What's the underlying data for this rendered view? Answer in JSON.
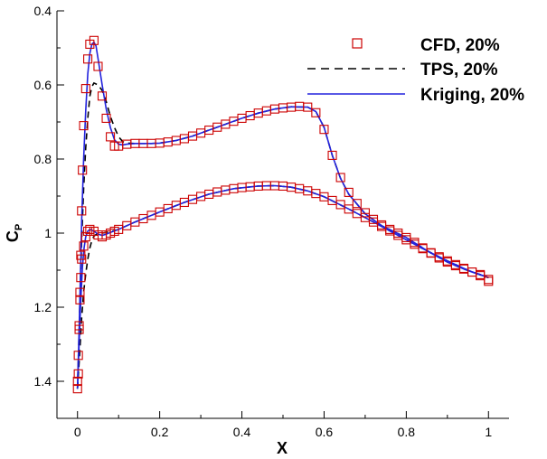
{
  "chart_data": {
    "type": "line",
    "xlabel": "X",
    "ylabel": "C",
    "ylabel_sub": "P",
    "xlim": [
      -0.05,
      1.05
    ],
    "ylim": [
      0.4,
      1.5
    ],
    "y_inverted": true,
    "xticks": [
      "0",
      "0.2",
      "0.4",
      "0.6",
      "0.8",
      "1"
    ],
    "xtick_values": [
      0,
      0.2,
      0.4,
      0.6,
      0.8,
      1
    ],
    "yticks": [
      "0.4",
      "0.6",
      "0.8",
      "1",
      "1.2",
      "1.4"
    ],
    "ytick_values": [
      0.4,
      0.6,
      0.8,
      1.0,
      1.2,
      1.4
    ],
    "grid": false,
    "legend_position": "top-right",
    "colors": {
      "cfd": "#cc0000",
      "tps": "#000000",
      "kriging": "#2222dd"
    },
    "series": [
      {
        "name": "CFD, 20%",
        "style": "markers",
        "marker": "square",
        "upper": [
          [
            0.0,
            1.42
          ],
          [
            0.002,
            1.38
          ],
          [
            0.004,
            1.26
          ],
          [
            0.006,
            1.16
          ],
          [
            0.008,
            1.06
          ],
          [
            0.01,
            0.94
          ],
          [
            0.012,
            0.83
          ],
          [
            0.015,
            0.71
          ],
          [
            0.02,
            0.61
          ],
          [
            0.025,
            0.53
          ],
          [
            0.03,
            0.49
          ],
          [
            0.04,
            0.48
          ],
          [
            0.05,
            0.55
          ],
          [
            0.06,
            0.63
          ],
          [
            0.07,
            0.69
          ],
          [
            0.08,
            0.74
          ],
          [
            0.09,
            0.765
          ],
          [
            0.1,
            0.765
          ],
          [
            0.12,
            0.76
          ],
          [
            0.14,
            0.758
          ],
          [
            0.16,
            0.758
          ],
          [
            0.18,
            0.758
          ],
          [
            0.2,
            0.757
          ],
          [
            0.22,
            0.754
          ],
          [
            0.24,
            0.75
          ],
          [
            0.26,
            0.745
          ],
          [
            0.28,
            0.738
          ],
          [
            0.3,
            0.73
          ],
          [
            0.32,
            0.722
          ],
          [
            0.34,
            0.714
          ],
          [
            0.36,
            0.706
          ],
          [
            0.38,
            0.698
          ],
          [
            0.4,
            0.69
          ],
          [
            0.42,
            0.683
          ],
          [
            0.44,
            0.676
          ],
          [
            0.46,
            0.67
          ],
          [
            0.48,
            0.665
          ],
          [
            0.5,
            0.662
          ],
          [
            0.52,
            0.66
          ],
          [
            0.54,
            0.658
          ],
          [
            0.56,
            0.66
          ],
          [
            0.58,
            0.675
          ],
          [
            0.6,
            0.72
          ],
          [
            0.62,
            0.79
          ],
          [
            0.64,
            0.85
          ],
          [
            0.66,
            0.89
          ],
          [
            0.68,
            0.92
          ],
          [
            0.7,
            0.945
          ],
          [
            0.72,
            0.963
          ],
          [
            0.74,
            0.978
          ],
          [
            0.76,
            0.99
          ],
          [
            0.78,
            1.0
          ],
          [
            0.8,
            1.012
          ],
          [
            0.82,
            1.025
          ],
          [
            0.84,
            1.04
          ],
          [
            0.86,
            1.054
          ],
          [
            0.88,
            1.067
          ],
          [
            0.9,
            1.078
          ],
          [
            0.92,
            1.088
          ],
          [
            0.94,
            1.097
          ],
          [
            0.96,
            1.105
          ],
          [
            0.98,
            1.112
          ],
          [
            1.0,
            1.13
          ]
        ],
        "lower": [
          [
            0.0,
            1.4
          ],
          [
            0.002,
            1.33
          ],
          [
            0.004,
            1.25
          ],
          [
            0.006,
            1.18
          ],
          [
            0.008,
            1.12
          ],
          [
            0.01,
            1.07
          ],
          [
            0.015,
            1.035
          ],
          [
            0.02,
            1.01
          ],
          [
            0.025,
            0.995
          ],
          [
            0.03,
            0.99
          ],
          [
            0.04,
            0.995
          ],
          [
            0.05,
            1.005
          ],
          [
            0.06,
            1.01
          ],
          [
            0.07,
            1.005
          ],
          [
            0.08,
            1.0
          ],
          [
            0.09,
            0.995
          ],
          [
            0.1,
            0.99
          ],
          [
            0.12,
            0.98
          ],
          [
            0.14,
            0.97
          ],
          [
            0.16,
            0.961
          ],
          [
            0.18,
            0.952
          ],
          [
            0.2,
            0.943
          ],
          [
            0.22,
            0.934
          ],
          [
            0.24,
            0.925
          ],
          [
            0.26,
            0.917
          ],
          [
            0.28,
            0.909
          ],
          [
            0.3,
            0.901
          ],
          [
            0.32,
            0.895
          ],
          [
            0.34,
            0.889
          ],
          [
            0.36,
            0.884
          ],
          [
            0.38,
            0.88
          ],
          [
            0.4,
            0.877
          ],
          [
            0.42,
            0.875
          ],
          [
            0.44,
            0.873
          ],
          [
            0.46,
            0.872
          ],
          [
            0.48,
            0.872
          ],
          [
            0.5,
            0.873
          ],
          [
            0.52,
            0.876
          ],
          [
            0.54,
            0.88
          ],
          [
            0.56,
            0.886
          ],
          [
            0.58,
            0.893
          ],
          [
            0.6,
            0.902
          ],
          [
            0.62,
            0.912
          ],
          [
            0.64,
            0.923
          ],
          [
            0.66,
            0.935
          ],
          [
            0.68,
            0.947
          ],
          [
            0.7,
            0.958
          ],
          [
            0.72,
            0.97
          ],
          [
            0.74,
            0.982
          ],
          [
            0.76,
            0.994
          ],
          [
            0.78,
            1.006
          ],
          [
            0.8,
            1.018
          ],
          [
            0.82,
            1.03
          ],
          [
            0.84,
            1.042
          ],
          [
            0.86,
            1.053
          ],
          [
            0.88,
            1.064
          ],
          [
            0.9,
            1.075
          ],
          [
            0.92,
            1.085
          ],
          [
            0.94,
            1.095
          ],
          [
            0.96,
            1.105
          ],
          [
            0.98,
            1.115
          ],
          [
            1.0,
            1.125
          ]
        ]
      },
      {
        "name": "TPS, 20%",
        "style": "dashed",
        "upper": [
          [
            0.0,
            1.42
          ],
          [
            0.005,
            1.22
          ],
          [
            0.01,
            1.02
          ],
          [
            0.015,
            0.88
          ],
          [
            0.02,
            0.77
          ],
          [
            0.025,
            0.69
          ],
          [
            0.03,
            0.63
          ],
          [
            0.035,
            0.605
          ],
          [
            0.04,
            0.595
          ],
          [
            0.05,
            0.6
          ],
          [
            0.06,
            0.615
          ],
          [
            0.07,
            0.645
          ],
          [
            0.08,
            0.685
          ],
          [
            0.09,
            0.715
          ],
          [
            0.1,
            0.74
          ],
          [
            0.11,
            0.753
          ],
          [
            0.12,
            0.757
          ],
          [
            0.14,
            0.758
          ],
          [
            0.16,
            0.758
          ],
          [
            0.18,
            0.758
          ],
          [
            0.2,
            0.757
          ],
          [
            0.24,
            0.75
          ],
          [
            0.28,
            0.738
          ],
          [
            0.32,
            0.722
          ],
          [
            0.36,
            0.706
          ],
          [
            0.4,
            0.69
          ],
          [
            0.44,
            0.676
          ],
          [
            0.48,
            0.665
          ],
          [
            0.52,
            0.659
          ],
          [
            0.56,
            0.66
          ],
          [
            0.58,
            0.672
          ],
          [
            0.6,
            0.715
          ],
          [
            0.62,
            0.79
          ],
          [
            0.64,
            0.852
          ],
          [
            0.66,
            0.895
          ],
          [
            0.7,
            0.948
          ],
          [
            0.74,
            0.98
          ],
          [
            0.8,
            1.012
          ],
          [
            0.86,
            1.054
          ],
          [
            0.9,
            1.078
          ],
          [
            0.94,
            1.097
          ],
          [
            0.98,
            1.112
          ],
          [
            1.0,
            1.12
          ]
        ],
        "lower": [
          [
            0.0,
            1.42
          ],
          [
            0.005,
            1.33
          ],
          [
            0.01,
            1.23
          ],
          [
            0.015,
            1.16
          ],
          [
            0.02,
            1.11
          ],
          [
            0.025,
            1.07
          ],
          [
            0.03,
            1.04
          ],
          [
            0.035,
            1.02
          ],
          [
            0.04,
            1.008
          ],
          [
            0.05,
            1.0
          ],
          [
            0.06,
            1.0
          ],
          [
            0.07,
            0.998
          ],
          [
            0.08,
            0.996
          ],
          [
            0.1,
            0.99
          ],
          [
            0.14,
            0.97
          ],
          [
            0.2,
            0.943
          ],
          [
            0.26,
            0.917
          ],
          [
            0.32,
            0.895
          ],
          [
            0.38,
            0.88
          ],
          [
            0.44,
            0.873
          ],
          [
            0.48,
            0.872
          ],
          [
            0.52,
            0.876
          ],
          [
            0.56,
            0.886
          ],
          [
            0.6,
            0.902
          ],
          [
            0.66,
            0.935
          ],
          [
            0.72,
            0.97
          ],
          [
            0.78,
            1.006
          ],
          [
            0.84,
            1.042
          ],
          [
            0.9,
            1.075
          ],
          [
            0.96,
            1.105
          ],
          [
            1.0,
            1.12
          ]
        ]
      },
      {
        "name": "Kriging, 20%",
        "style": "solid",
        "upper": [
          [
            0.0,
            1.42
          ],
          [
            0.003,
            1.3
          ],
          [
            0.006,
            1.16
          ],
          [
            0.01,
            0.97
          ],
          [
            0.015,
            0.8
          ],
          [
            0.02,
            0.67
          ],
          [
            0.025,
            0.57
          ],
          [
            0.03,
            0.515
          ],
          [
            0.035,
            0.49
          ],
          [
            0.04,
            0.485
          ],
          [
            0.045,
            0.495
          ],
          [
            0.05,
            0.53
          ],
          [
            0.06,
            0.6
          ],
          [
            0.07,
            0.665
          ],
          [
            0.08,
            0.715
          ],
          [
            0.09,
            0.748
          ],
          [
            0.1,
            0.76
          ],
          [
            0.11,
            0.762
          ],
          [
            0.12,
            0.76
          ],
          [
            0.14,
            0.758
          ],
          [
            0.16,
            0.758
          ],
          [
            0.18,
            0.758
          ],
          [
            0.2,
            0.757
          ],
          [
            0.24,
            0.75
          ],
          [
            0.28,
            0.738
          ],
          [
            0.32,
            0.722
          ],
          [
            0.36,
            0.706
          ],
          [
            0.4,
            0.69
          ],
          [
            0.44,
            0.676
          ],
          [
            0.48,
            0.665
          ],
          [
            0.52,
            0.659
          ],
          [
            0.56,
            0.66
          ],
          [
            0.58,
            0.672
          ],
          [
            0.6,
            0.715
          ],
          [
            0.62,
            0.79
          ],
          [
            0.64,
            0.852
          ],
          [
            0.66,
            0.895
          ],
          [
            0.7,
            0.948
          ],
          [
            0.74,
            0.98
          ],
          [
            0.8,
            1.012
          ],
          [
            0.86,
            1.054
          ],
          [
            0.9,
            1.078
          ],
          [
            0.94,
            1.097
          ],
          [
            0.98,
            1.112
          ],
          [
            1.0,
            1.12
          ]
        ],
        "lower": [
          [
            0.0,
            1.42
          ],
          [
            0.004,
            1.3
          ],
          [
            0.008,
            1.18
          ],
          [
            0.012,
            1.09
          ],
          [
            0.016,
            1.04
          ],
          [
            0.02,
            1.01
          ],
          [
            0.025,
            0.995
          ],
          [
            0.03,
            0.99
          ],
          [
            0.04,
            0.995
          ],
          [
            0.05,
            1.003
          ],
          [
            0.06,
            1.006
          ],
          [
            0.07,
            1.003
          ],
          [
            0.08,
            0.998
          ],
          [
            0.1,
            0.99
          ],
          [
            0.14,
            0.97
          ],
          [
            0.2,
            0.943
          ],
          [
            0.26,
            0.917
          ],
          [
            0.32,
            0.895
          ],
          [
            0.38,
            0.88
          ],
          [
            0.44,
            0.873
          ],
          [
            0.48,
            0.872
          ],
          [
            0.52,
            0.876
          ],
          [
            0.56,
            0.886
          ],
          [
            0.6,
            0.902
          ],
          [
            0.66,
            0.935
          ],
          [
            0.72,
            0.97
          ],
          [
            0.78,
            1.006
          ],
          [
            0.84,
            1.042
          ],
          [
            0.9,
            1.075
          ],
          [
            0.96,
            1.105
          ],
          [
            1.0,
            1.12
          ]
        ]
      }
    ]
  }
}
